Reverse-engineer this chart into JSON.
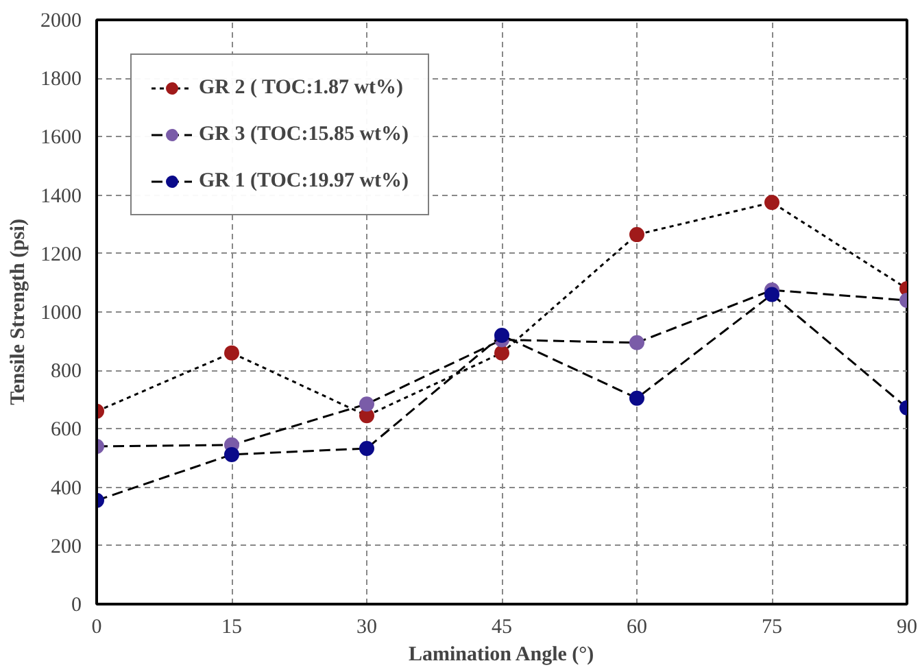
{
  "chart_data": {
    "type": "line",
    "xlabel": "Lamination Angle (°)",
    "ylabel": "Tensile Strength (psi)",
    "x": [
      0,
      15,
      30,
      45,
      60,
      75,
      90
    ],
    "series": [
      {
        "name": "GR 2 ( TOC:1.87 wt%)",
        "color": "#a01a1a",
        "line_style": "dotted",
        "values": [
          660,
          860,
          645,
          860,
          1265,
          1375,
          1080
        ]
      },
      {
        "name": "GR 3 (TOC:15.85 wt%)",
        "color": "#7a5ca8",
        "line_style": "dashed",
        "values": [
          540,
          545,
          685,
          905,
          895,
          1075,
          1040
        ]
      },
      {
        "name": "GR 1 (TOC:19.97 wt%)",
        "color": "#0a0a8a",
        "line_style": "dashed",
        "values": [
          355,
          512,
          533,
          920,
          705,
          1060,
          672
        ]
      }
    ],
    "xlim": [
      0,
      90
    ],
    "ylim": [
      0,
      2000
    ],
    "xticks": [
      0,
      15,
      30,
      45,
      60,
      75,
      90
    ],
    "yticks": [
      0,
      200,
      400,
      600,
      800,
      1000,
      1200,
      1400,
      1600,
      1800,
      2000
    ],
    "grid": true,
    "legend": "top left",
    "marker": "circle"
  }
}
